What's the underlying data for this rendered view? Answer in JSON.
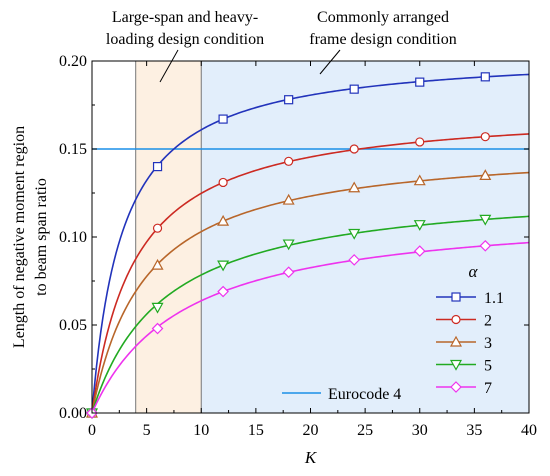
{
  "chart_data": {
    "type": "line",
    "xlabel": "K",
    "ylabel_lines": [
      "Length of negative moment region",
      "to beam span ratio"
    ],
    "xlim": [
      0,
      40
    ],
    "ylim": [
      0,
      0.2
    ],
    "x_ticks": [
      0,
      5,
      10,
      15,
      20,
      25,
      30,
      35,
      40
    ],
    "y_ticks": [
      0,
      0.05,
      0.1,
      0.15,
      0.2
    ],
    "y_tick_labels": [
      "0.00",
      "0.05",
      "0.10",
      "0.15",
      "0.20"
    ],
    "grid": false,
    "regions": [
      {
        "x_range": [
          4,
          10
        ],
        "color": "#fdf0e2",
        "label_lines": [
          "Large-span and heavy-",
          "loading design condition"
        ]
      },
      {
        "x_range": [
          10,
          40
        ],
        "color": "#e2eefb",
        "label_lines": [
          "Commonly arranged",
          "frame design condition"
        ]
      }
    ],
    "legend": {
      "title": "α",
      "position": "bottom-right"
    },
    "series": [
      {
        "name": "1.1",
        "color": "#2233bb",
        "marker": "square",
        "x": [
          0,
          6,
          12,
          18,
          24,
          30,
          36
        ],
        "values": [
          0,
          0.14,
          0.167,
          0.178,
          0.184,
          0.188,
          0.191
        ]
      },
      {
        "name": "2",
        "color": "#cc2a22",
        "marker": "circle",
        "x": [
          0,
          6,
          12,
          18,
          24,
          30,
          36
        ],
        "values": [
          0,
          0.105,
          0.131,
          0.143,
          0.15,
          0.154,
          0.157
        ]
      },
      {
        "name": "3",
        "color": "#b8662a",
        "marker": "triangle-up",
        "x": [
          0,
          6,
          12,
          18,
          24,
          30,
          36
        ],
        "values": [
          0,
          0.084,
          0.109,
          0.121,
          0.128,
          0.132,
          0.135
        ]
      },
      {
        "name": "5",
        "color": "#22aa22",
        "marker": "triangle-down",
        "x": [
          0,
          6,
          12,
          18,
          24,
          30,
          36
        ],
        "values": [
          0,
          0.06,
          0.084,
          0.096,
          0.102,
          0.107,
          0.11
        ]
      },
      {
        "name": "7",
        "color": "#ee33ee",
        "marker": "diamond",
        "x": [
          0,
          6,
          12,
          18,
          24,
          30,
          36
        ],
        "values": [
          0,
          0.048,
          0.069,
          0.08,
          0.087,
          0.092,
          0.095
        ]
      }
    ],
    "reference_line": {
      "name": "Eurocode 4",
      "y": 0.15,
      "color": "#1a8fe8"
    }
  }
}
